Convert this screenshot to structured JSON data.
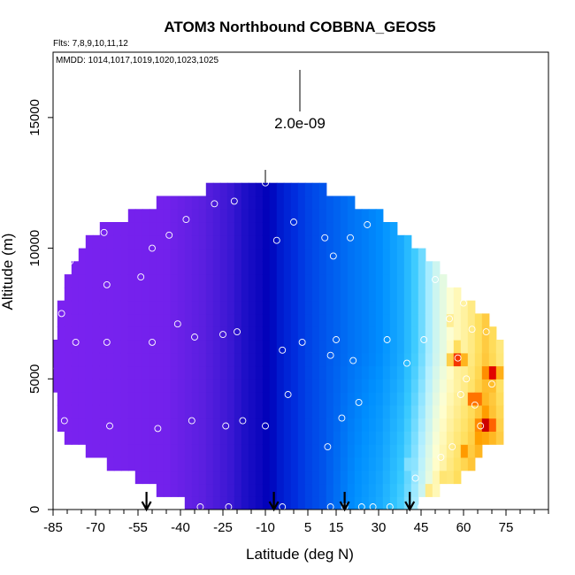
{
  "chart_data": {
    "type": "heatmap",
    "title": "ATOM3 Northbound COBBNA_GEOS5",
    "flights_note": "Flts: 7,8,9,10,11,12",
    "dates_note": "MMDD: 1014,1017,1019,1020,1023,1025",
    "xlabel": "Latitude (deg N)",
    "ylabel": "Altitude (m)",
    "xlim": [
      -85,
      90
    ],
    "ylim": [
      0,
      17500
    ],
    "x_ticks": [
      -85,
      -70,
      -55,
      -40,
      -25,
      -10,
      5,
      15,
      30,
      45,
      60,
      75
    ],
    "y_ticks": [
      0,
      5000,
      10000,
      15000
    ],
    "scale_bar_label": "2.0e-09",
    "grid": false,
    "colormap": [
      "#7b22f0",
      "#5a1fe0",
      "#2010c8",
      "#0000b8",
      "#0030e0",
      "#0090ff",
      "#35c8ff",
      "#b5f0ff",
      "#ffffd0",
      "#ffe060",
      "#ffa000",
      "#ff5000",
      "#e00000",
      "#c00000"
    ],
    "profile": [
      {
        "x": -86,
        "top": 5500,
        "bottom": 5400
      },
      {
        "x": -83,
        "top": 7800,
        "bottom": 3000
      },
      {
        "x": -78,
        "top": 9500,
        "bottom": 2600
      },
      {
        "x": -73,
        "top": 10400,
        "bottom": 2200
      },
      {
        "x": -66,
        "top": 10900,
        "bottom": 1800
      },
      {
        "x": -58,
        "top": 11300,
        "bottom": 1300
      },
      {
        "x": -50,
        "top": 11700,
        "bottom": 900
      },
      {
        "x": -42,
        "top": 12000,
        "bottom": 400
      },
      {
        "x": -34,
        "top": 12100,
        "bottom": 0
      },
      {
        "x": -27,
        "top": 12500,
        "bottom": 0
      },
      {
        "x": -20,
        "top": 12500,
        "bottom": 0
      },
      {
        "x": -12,
        "top": 12500,
        "bottom": 0
      },
      {
        "x": -4,
        "top": 12500,
        "bottom": 0
      },
      {
        "x": 4,
        "top": 12400,
        "bottom": 0
      },
      {
        "x": 10,
        "top": 12400,
        "bottom": 0
      },
      {
        "x": 16,
        "top": 12000,
        "bottom": 0
      },
      {
        "x": 22,
        "top": 11700,
        "bottom": 0
      },
      {
        "x": 28,
        "top": 11500,
        "bottom": 0
      },
      {
        "x": 34,
        "top": 11000,
        "bottom": 0
      },
      {
        "x": 40,
        "top": 10400,
        "bottom": 0
      },
      {
        "x": 46,
        "top": 9700,
        "bottom": 300
      },
      {
        "x": 52,
        "top": 9100,
        "bottom": 800
      },
      {
        "x": 58,
        "top": 8300,
        "bottom": 1200
      },
      {
        "x": 64,
        "top": 7800,
        "bottom": 1800
      },
      {
        "x": 68,
        "top": 7300,
        "bottom": 2300
      },
      {
        "x": 72,
        "top": 6900,
        "bottom": 2300
      },
      {
        "x": 74,
        "top": 6400,
        "bottom": 2300
      }
    ],
    "field": [
      {
        "x": -85,
        "level": 0.0
      },
      {
        "x": -45,
        "level": 0.02
      },
      {
        "x": -22,
        "level": 0.12
      },
      {
        "x": -12,
        "level": 0.2
      },
      {
        "x": -4,
        "level": 0.28
      },
      {
        "x": 4,
        "level": 0.32
      },
      {
        "x": 12,
        "level": 0.34
      },
      {
        "x": 20,
        "level": 0.36
      },
      {
        "x": 30,
        "level": 0.38
      },
      {
        "x": 38,
        "level": 0.42
      },
      {
        "x": 44,
        "level": 0.48
      },
      {
        "x": 50,
        "level": 0.56
      },
      {
        "x": 56,
        "level": 0.62
      },
      {
        "x": 62,
        "level": 0.66
      },
      {
        "x": 68,
        "level": 0.72
      },
      {
        "x": 74,
        "level": 0.66
      }
    ],
    "hotspots": [
      {
        "x": 58,
        "y": 5800,
        "level": 0.9
      },
      {
        "x": 64,
        "y": 4200,
        "level": 0.9
      },
      {
        "x": 68,
        "y": 3300,
        "level": 1.0
      },
      {
        "x": 70,
        "y": 5200,
        "level": 0.95
      },
      {
        "x": 66,
        "y": 2600,
        "level": 0.85
      },
      {
        "x": 60,
        "y": 2200,
        "level": 0.8
      },
      {
        "x": 52,
        "y": 1400,
        "level": 0.75
      },
      {
        "x": 48,
        "y": 600,
        "level": 0.72
      },
      {
        "x": 40,
        "y": 1600,
        "level": 0.55
      },
      {
        "x": 56,
        "y": 7200,
        "level": 0.7
      }
    ],
    "sample_points": [
      {
        "x": -86,
        "y": 5400
      },
      {
        "x": -82,
        "y": 7500
      },
      {
        "x": -81,
        "y": 3400
      },
      {
        "x": -79,
        "y": 9500
      },
      {
        "x": -77,
        "y": 6400
      },
      {
        "x": -67,
        "y": 10600
      },
      {
        "x": -66,
        "y": 8600
      },
      {
        "x": -66,
        "y": 6400
      },
      {
        "x": -65,
        "y": 3200
      },
      {
        "x": -54,
        "y": 8900
      },
      {
        "x": -50,
        "y": 10000
      },
      {
        "x": -50,
        "y": 6400
      },
      {
        "x": -48,
        "y": 3100
      },
      {
        "x": -44,
        "y": 10500
      },
      {
        "x": -41,
        "y": 7100
      },
      {
        "x": -38,
        "y": 11100
      },
      {
        "x": -36,
        "y": 3400
      },
      {
        "x": -35,
        "y": 6600
      },
      {
        "x": -33,
        "y": 100
      },
      {
        "x": -28,
        "y": 11700
      },
      {
        "x": -25,
        "y": 6700
      },
      {
        "x": -24,
        "y": 3200
      },
      {
        "x": -23,
        "y": 100
      },
      {
        "x": -21,
        "y": 11800
      },
      {
        "x": -20,
        "y": 6800
      },
      {
        "x": -18,
        "y": 3400
      },
      {
        "x": -10,
        "y": 12500
      },
      {
        "x": -10,
        "y": 3200
      },
      {
        "x": -6,
        "y": 10300
      },
      {
        "x": -4,
        "y": 6100
      },
      {
        "x": -2,
        "y": 4400
      },
      {
        "x": -4,
        "y": 100
      },
      {
        "x": 0,
        "y": 11000
      },
      {
        "x": 3,
        "y": 6400
      },
      {
        "x": 11,
        "y": 10400
      },
      {
        "x": 12,
        "y": 2400
      },
      {
        "x": 13,
        "y": 100
      },
      {
        "x": 13,
        "y": 5900
      },
      {
        "x": 14,
        "y": 9700
      },
      {
        "x": 15,
        "y": 6500
      },
      {
        "x": 17,
        "y": 3500
      },
      {
        "x": 18,
        "y": 100
      },
      {
        "x": 20,
        "y": 10400
      },
      {
        "x": 21,
        "y": 5700
      },
      {
        "x": 23,
        "y": 4100
      },
      {
        "x": 24,
        "y": 100
      },
      {
        "x": 26,
        "y": 10900
      },
      {
        "x": 28,
        "y": 100
      },
      {
        "x": 33,
        "y": 6500
      },
      {
        "x": 34,
        "y": 100
      },
      {
        "x": 38,
        "y": 11500
      },
      {
        "x": 40,
        "y": 5600
      },
      {
        "x": 43,
        "y": 1200
      },
      {
        "x": 45,
        "y": 100
      },
      {
        "x": 46,
        "y": 6500
      },
      {
        "x": 50,
        "y": 8800
      },
      {
        "x": 52,
        "y": 2000
      },
      {
        "x": 55,
        "y": 7300
      },
      {
        "x": 56,
        "y": 2400
      },
      {
        "x": 58,
        "y": 5800
      },
      {
        "x": 59,
        "y": 4400
      },
      {
        "x": 60,
        "y": 7900
      },
      {
        "x": 61,
        "y": 5000
      },
      {
        "x": 63,
        "y": 6900
      },
      {
        "x": 64,
        "y": 4000
      },
      {
        "x": 66,
        "y": 3200
      },
      {
        "x": 68,
        "y": 6800
      },
      {
        "x": 70,
        "y": 4800
      }
    ],
    "arrows_at_latitude": [
      -52,
      -7,
      18,
      41
    ],
    "top_tick_at_latitude": -10
  }
}
